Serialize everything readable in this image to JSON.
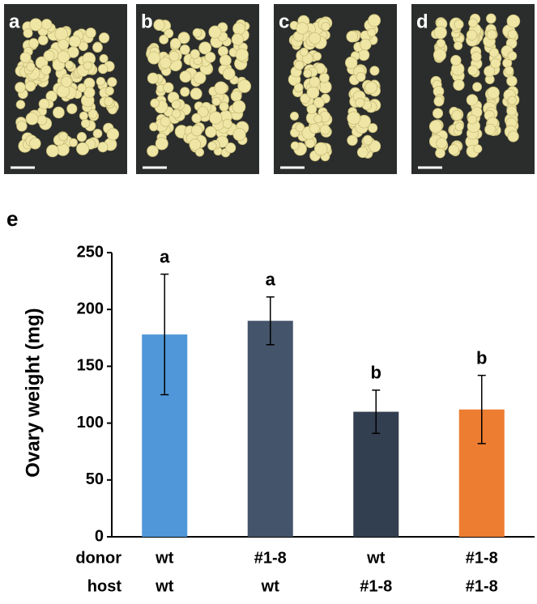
{
  "panels": [
    {
      "label": "a"
    },
    {
      "label": "b"
    },
    {
      "label": "c"
    },
    {
      "label": "d"
    }
  ],
  "chart_data": {
    "type": "bar",
    "panel_label": "e",
    "y_label": "Ovary weight (mg)",
    "category_levels": [
      {
        "name": "donor",
        "labels": [
          "wt",
          "#1-8",
          "wt",
          "#1-8"
        ]
      },
      {
        "name": "host",
        "labels": [
          "wt",
          "wt",
          "#1-8",
          "#1-8"
        ]
      }
    ],
    "values": [
      178,
      190,
      110,
      112
    ],
    "errors": [
      53,
      21,
      19,
      30
    ],
    "significance": [
      "a",
      "a",
      "b",
      "b"
    ],
    "colors": [
      "#4f97d8",
      "#44546a",
      "#323f50",
      "#ed7d31"
    ],
    "ylim": [
      0,
      250
    ],
    "yticks": [
      0,
      50,
      100,
      150,
      200,
      250
    ],
    "grid": false
  }
}
